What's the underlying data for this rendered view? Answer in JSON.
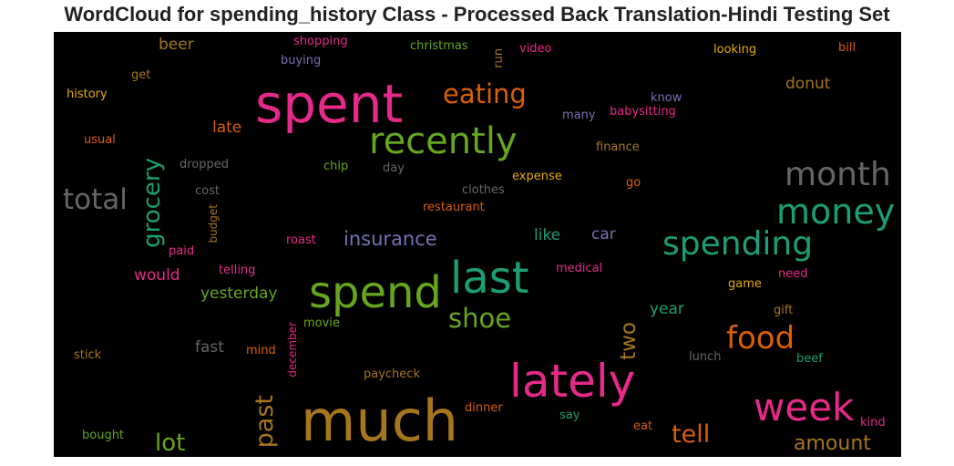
{
  "chart_data": {
    "type": "wordcloud",
    "title": "WordCloud for spending_history Class - Processed Back Translation-Hindi Testing Set",
    "background": "#000000",
    "palette": [
      "#e7298a",
      "#66a61e",
      "#d95f02",
      "#1b9e77",
      "#7570b3",
      "#a6761d",
      "#e6ab02",
      "#666666"
    ],
    "words": [
      {
        "text": "much",
        "weight": 1.0,
        "color": "#a6761d",
        "vertical": false
      },
      {
        "text": "spent",
        "weight": 0.95,
        "color": "#e7298a",
        "vertical": false
      },
      {
        "text": "lately",
        "weight": 0.82,
        "color": "#e7298a",
        "vertical": false
      },
      {
        "text": "spend",
        "weight": 0.8,
        "color": "#66a61e",
        "vertical": false
      },
      {
        "text": "last",
        "weight": 0.8,
        "color": "#1b9e77",
        "vertical": false
      },
      {
        "text": "recently",
        "weight": 0.7,
        "color": "#66a61e",
        "vertical": false
      },
      {
        "text": "week",
        "weight": 0.7,
        "color": "#e7298a",
        "vertical": false
      },
      {
        "text": "month",
        "weight": 0.6,
        "color": "#666666",
        "vertical": false
      },
      {
        "text": "money",
        "weight": 0.6,
        "color": "#1b9e77",
        "vertical": false
      },
      {
        "text": "spending",
        "weight": 0.6,
        "color": "#1b9e77",
        "vertical": false
      },
      {
        "text": "total",
        "weight": 0.5,
        "color": "#666666",
        "vertical": false
      },
      {
        "text": "food",
        "weight": 0.55,
        "color": "#d95f02",
        "vertical": false
      },
      {
        "text": "eating",
        "weight": 0.45,
        "color": "#d95f02",
        "vertical": false
      },
      {
        "text": "shoe",
        "weight": 0.45,
        "color": "#66a61e",
        "vertical": false
      },
      {
        "text": "grocery",
        "weight": 0.42,
        "color": "#1b9e77",
        "vertical": true
      },
      {
        "text": "past",
        "weight": 0.42,
        "color": "#a6761d",
        "vertical": true
      },
      {
        "text": "tell",
        "weight": 0.42,
        "color": "#d95f02",
        "vertical": false
      },
      {
        "text": "lot",
        "weight": 0.42,
        "color": "#66a61e",
        "vertical": false
      },
      {
        "text": "two",
        "weight": 0.36,
        "color": "#a6761d",
        "vertical": true
      },
      {
        "text": "amount",
        "weight": 0.36,
        "color": "#a6761d",
        "vertical": false
      },
      {
        "text": "insurance",
        "weight": 0.33,
        "color": "#7570b3",
        "vertical": false
      },
      {
        "text": "donut",
        "weight": 0.28,
        "color": "#a6761d",
        "vertical": false
      },
      {
        "text": "late",
        "weight": 0.28,
        "color": "#d95f02",
        "vertical": false
      },
      {
        "text": "would",
        "weight": 0.28,
        "color": "#e7298a",
        "vertical": false
      },
      {
        "text": "yesterday",
        "weight": 0.28,
        "color": "#66a61e",
        "vertical": false
      },
      {
        "text": "beer",
        "weight": 0.28,
        "color": "#a6761d",
        "vertical": false
      },
      {
        "text": "fast",
        "weight": 0.28,
        "color": "#666666",
        "vertical": false
      },
      {
        "text": "like",
        "weight": 0.28,
        "color": "#1b9e77",
        "vertical": false
      },
      {
        "text": "car",
        "weight": 0.28,
        "color": "#7570b3",
        "vertical": false
      },
      {
        "text": "year",
        "weight": 0.28,
        "color": "#1b9e77",
        "vertical": false
      },
      {
        "text": "shopping",
        "weight": 0.2,
        "color": "#e7298a",
        "vertical": false
      },
      {
        "text": "christmas",
        "weight": 0.2,
        "color": "#66a61e",
        "vertical": false
      },
      {
        "text": "video",
        "weight": 0.2,
        "color": "#e7298a",
        "vertical": false
      },
      {
        "text": "looking",
        "weight": 0.2,
        "color": "#e6ab02",
        "vertical": false
      },
      {
        "text": "bill",
        "weight": 0.2,
        "color": "#d95f02",
        "vertical": false
      },
      {
        "text": "buying",
        "weight": 0.2,
        "color": "#7570b3",
        "vertical": false
      },
      {
        "text": "get",
        "weight": 0.2,
        "color": "#a6761d",
        "vertical": false
      },
      {
        "text": "history",
        "weight": 0.2,
        "color": "#e6ab02",
        "vertical": false
      },
      {
        "text": "run",
        "weight": 0.2,
        "color": "#a6761d",
        "vertical": true
      },
      {
        "text": "know",
        "weight": 0.2,
        "color": "#7570b3",
        "vertical": false
      },
      {
        "text": "babysitting",
        "weight": 0.2,
        "color": "#e7298a",
        "vertical": false
      },
      {
        "text": "many",
        "weight": 0.2,
        "color": "#7570b3",
        "vertical": false
      },
      {
        "text": "usual",
        "weight": 0.2,
        "color": "#d95f02",
        "vertical": false
      },
      {
        "text": "finance",
        "weight": 0.2,
        "color": "#a6761d",
        "vertical": false
      },
      {
        "text": "dropped",
        "weight": 0.2,
        "color": "#666666",
        "vertical": false
      },
      {
        "text": "chip",
        "weight": 0.2,
        "color": "#66a61e",
        "vertical": false
      },
      {
        "text": "day",
        "weight": 0.2,
        "color": "#666666",
        "vertical": false
      },
      {
        "text": "expense",
        "weight": 0.2,
        "color": "#e6ab02",
        "vertical": false
      },
      {
        "text": "go",
        "weight": 0.2,
        "color": "#d95f02",
        "vertical": false
      },
      {
        "text": "cost",
        "weight": 0.2,
        "color": "#666666",
        "vertical": false
      },
      {
        "text": "clothes",
        "weight": 0.2,
        "color": "#666666",
        "vertical": false
      },
      {
        "text": "restaurant",
        "weight": 0.2,
        "color": "#d95f02",
        "vertical": false
      },
      {
        "text": "budget",
        "weight": 0.18,
        "color": "#a6761d",
        "vertical": true
      },
      {
        "text": "roast",
        "weight": 0.2,
        "color": "#e7298a",
        "vertical": false
      },
      {
        "text": "paid",
        "weight": 0.2,
        "color": "#e7298a",
        "vertical": false
      },
      {
        "text": "telling",
        "weight": 0.2,
        "color": "#e7298a",
        "vertical": false
      },
      {
        "text": "medical",
        "weight": 0.2,
        "color": "#e7298a",
        "vertical": false
      },
      {
        "text": "need",
        "weight": 0.2,
        "color": "#e7298a",
        "vertical": false
      },
      {
        "text": "game",
        "weight": 0.2,
        "color": "#e6ab02",
        "vertical": false
      },
      {
        "text": "gift",
        "weight": 0.2,
        "color": "#a6761d",
        "vertical": false
      },
      {
        "text": "movie",
        "weight": 0.2,
        "color": "#66a61e",
        "vertical": false
      },
      {
        "text": "december",
        "weight": 0.18,
        "color": "#e7298a",
        "vertical": true
      },
      {
        "text": "mind",
        "weight": 0.2,
        "color": "#d95f02",
        "vertical": false
      },
      {
        "text": "stick",
        "weight": 0.2,
        "color": "#a6761d",
        "vertical": false
      },
      {
        "text": "lunch",
        "weight": 0.2,
        "color": "#666666",
        "vertical": false
      },
      {
        "text": "beef",
        "weight": 0.2,
        "color": "#1b9e77",
        "vertical": false
      },
      {
        "text": "paycheck",
        "weight": 0.2,
        "color": "#a6761d",
        "vertical": false
      },
      {
        "text": "dinner",
        "weight": 0.2,
        "color": "#d95f02",
        "vertical": false
      },
      {
        "text": "say",
        "weight": 0.2,
        "color": "#1b9e77",
        "vertical": false
      },
      {
        "text": "eat",
        "weight": 0.2,
        "color": "#d95f02",
        "vertical": false
      },
      {
        "text": "kind",
        "weight": 0.2,
        "color": "#e7298a",
        "vertical": false
      },
      {
        "text": "bought",
        "weight": 0.2,
        "color": "#66a61e",
        "vertical": false
      }
    ]
  }
}
